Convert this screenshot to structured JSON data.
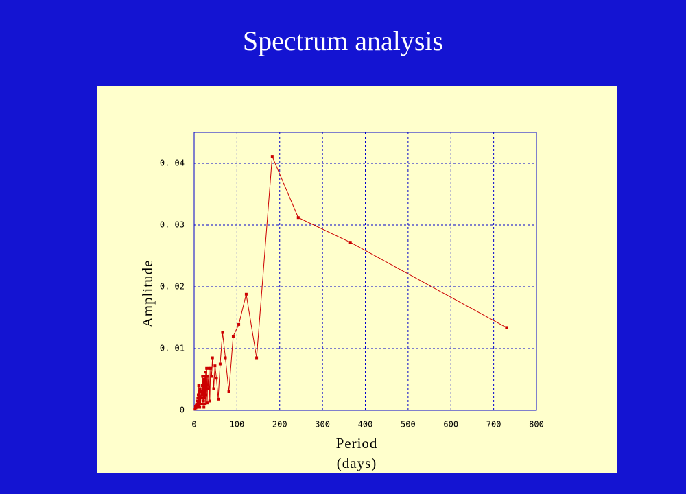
{
  "chart_data": {
    "type": "line",
    "title": "Spectrum analysis",
    "xlabel": "Period (days)",
    "ylabel": "Amplitude",
    "xlim": [
      0,
      800
    ],
    "xticks": [
      0,
      100,
      200,
      300,
      400,
      500,
      600,
      700,
      800
    ],
    "ylim": [
      0,
      0.045
    ],
    "yticks": [
      0,
      {
        "value": 0.01,
        "label": "0. 01"
      },
      {
        "value": 0.02,
        "label": "0. 02"
      },
      {
        "value": 0.03,
        "label": "0. 03"
      },
      {
        "value": 0.04,
        "label": "0. 04"
      }
    ],
    "grid": true,
    "series": [
      {
        "color": "#cc0000",
        "x": [
          730,
          365,
          243.3,
          182.5,
          146,
          121.7,
          104.3,
          91.3,
          81.1,
          73,
          66.4,
          60.8,
          56.2,
          52.1,
          48.7,
          45.6,
          42.9,
          40.6,
          38.4,
          36.5,
          34.8,
          33.2,
          31.7,
          30.4,
          29.2,
          28.1,
          27,
          26.1,
          25.2,
          24.3,
          23.5,
          22.8,
          22.1,
          21.5,
          20.9,
          20.3,
          19.7,
          19.2,
          18.7,
          18.3,
          16.6,
          15.2,
          14,
          13,
          12.2,
          11.4,
          10.7,
          10.1,
          9.6,
          9.1,
          8.6,
          8.1,
          7.3,
          6.6,
          6,
          5,
          4,
          3,
          2
        ],
        "values": [
          0.0134,
          0.0272,
          0.0312,
          0.0411,
          0.0085,
          0.0188,
          0.0139,
          0.012,
          0.003,
          0.0085,
          0.0126,
          0.0075,
          0.0018,
          0.0052,
          0.0072,
          0.0035,
          0.0085,
          0.0055,
          0.0068,
          0.0015,
          0.0068,
          0.0035,
          0.0055,
          0.0012,
          0.0068,
          0.0025,
          0.0062,
          0.001,
          0.0055,
          0.002,
          0.005,
          0.0005,
          0.0045,
          0.0015,
          0.004,
          0.0025,
          0.0055,
          0.001,
          0.004,
          0.002,
          0.003,
          0.001,
          0.0035,
          0.0005,
          0.003,
          0.001,
          0.004,
          0.0008,
          0.0025,
          0.0005,
          0.002,
          0.001,
          0.0015,
          0.0005,
          0.001,
          0.0008,
          0.0004,
          0.0006,
          0.0002
        ]
      }
    ]
  }
}
